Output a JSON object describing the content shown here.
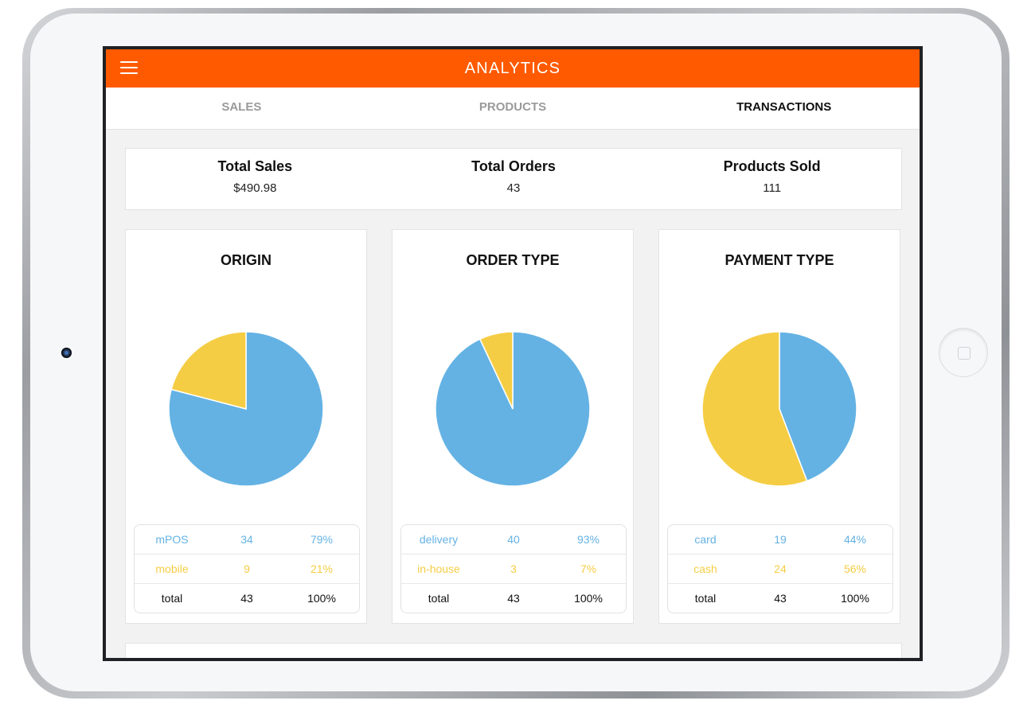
{
  "app": {
    "title": "ANALYTICS"
  },
  "tabs": [
    {
      "label": "SALES",
      "active": false
    },
    {
      "label": "PRODUCTS",
      "active": false
    },
    {
      "label": "TRANSACTIONS",
      "active": true
    }
  ],
  "summary": [
    {
      "label": "Total Sales",
      "value": "$490.98"
    },
    {
      "label": "Total Orders",
      "value": "43"
    },
    {
      "label": "Products Sold",
      "value": "111"
    }
  ],
  "colors": {
    "accent": "#ff5a00",
    "blue": "#64b2e4",
    "yellow": "#f5cd44"
  },
  "chart_data": [
    {
      "type": "pie",
      "title": "ORIGIN",
      "categories": [
        "mPOS",
        "mobile"
      ],
      "values": [
        34,
        9
      ],
      "colors": [
        "#64b2e4",
        "#f5cd44"
      ]
    },
    {
      "type": "pie",
      "title": "ORDER TYPE",
      "categories": [
        "delivery",
        "in-house"
      ],
      "values": [
        40,
        3
      ],
      "colors": [
        "#64b2e4",
        "#f5cd44"
      ]
    },
    {
      "type": "pie",
      "title": "PAYMENT TYPE",
      "categories": [
        "card",
        "cash"
      ],
      "values": [
        19,
        24
      ],
      "colors": [
        "#64b2e4",
        "#f5cd44"
      ]
    }
  ],
  "cards": [
    {
      "title": "ORIGIN",
      "rows": [
        {
          "label": "mPOS",
          "count": "34",
          "percent": "79%"
        },
        {
          "label": "mobile",
          "count": "9",
          "percent": "21%"
        },
        {
          "label": "total",
          "count": "43",
          "percent": "100%"
        }
      ]
    },
    {
      "title": "ORDER TYPE",
      "rows": [
        {
          "label": "delivery",
          "count": "40",
          "percent": "93%"
        },
        {
          "label": "in-house",
          "count": "3",
          "percent": "7%"
        },
        {
          "label": "total",
          "count": "43",
          "percent": "100%"
        }
      ]
    },
    {
      "title": "PAYMENT TYPE",
      "rows": [
        {
          "label": "card",
          "count": "19",
          "percent": "44%"
        },
        {
          "label": "cash",
          "count": "24",
          "percent": "56%"
        },
        {
          "label": "total",
          "count": "43",
          "percent": "100%"
        }
      ]
    }
  ]
}
